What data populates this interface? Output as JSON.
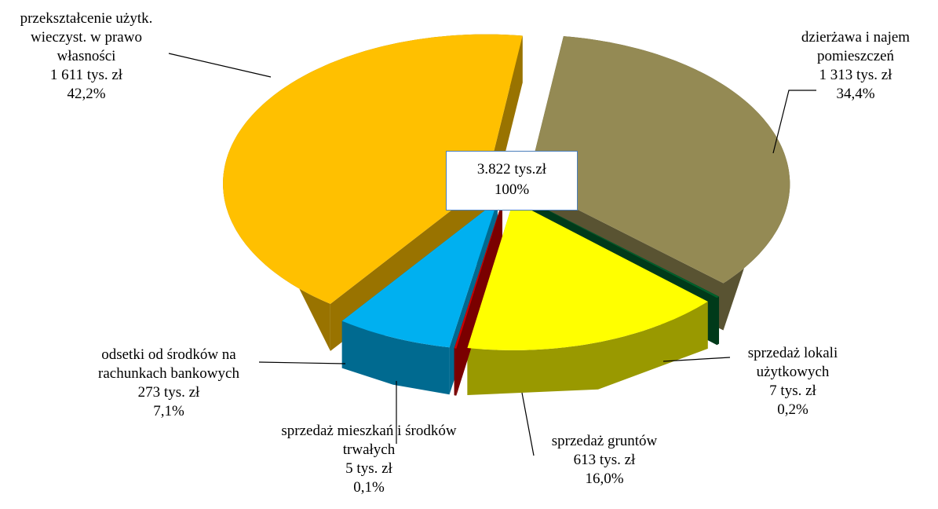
{
  "chart_data": {
    "type": "pie",
    "categories": [
      "dzierżawa i najem pomieszczeń",
      "sprzedaż lokali użytkowych",
      "sprzedaż gruntów",
      "sprzedaż mieszkań i środków trwałych",
      "odsetki od środków na rachunkach bankowych",
      "przekształcenie użytk. wieczyst. w prawo własności"
    ],
    "values": [
      1313,
      7,
      613,
      5,
      273,
      1611
    ],
    "value_labels": [
      "1 313 tys. zł",
      "7 tys. zł",
      "613 tys. zł",
      "5 tys. zł",
      "273 tys. zł",
      "1 611 tys. zł"
    ],
    "percents": [
      34.4,
      0.2,
      16.0,
      0.1,
      7.1,
      42.2
    ],
    "percent_labels": [
      "34,4%",
      "0,2%",
      "16,0%",
      "0,1%",
      "7,1%",
      "42,2%"
    ],
    "colors": [
      "#948a54",
      "#00602b",
      "#ffff00",
      "#cc0000",
      "#00b0f0",
      "#ffc000"
    ],
    "total": {
      "value": 3822,
      "label": "3.822 tys.zł"
    },
    "total_percent": {
      "value": 100,
      "label": "100%"
    }
  }
}
